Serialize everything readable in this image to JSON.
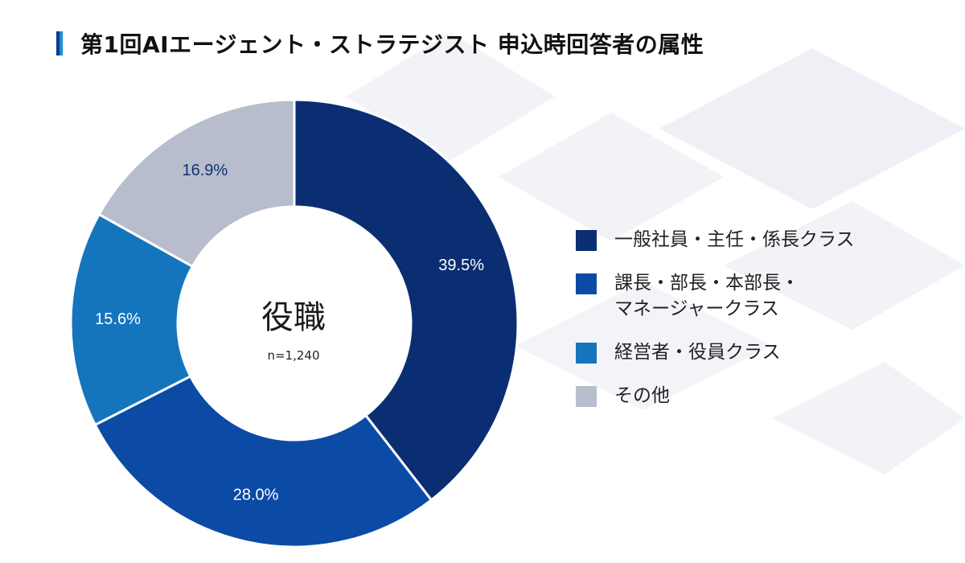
{
  "title": "第1回AIエージェント・ストラテジスト 申込時回答者の属性",
  "colors": {
    "title_bar_dark": "#0b3d8c",
    "title_bar_light": "#1d8fd8",
    "background_deco": "#eef0f5"
  },
  "chart_data": {
    "type": "pie",
    "donut": true,
    "title": "第1回AIエージェント・ストラテジスト 申込時回答者の属性",
    "center_label": "役職",
    "center_sublabel": "n=1,240",
    "slices": [
      {
        "label": "一般社員・主任・係長クラス",
        "value": 39.5,
        "display": "39.5%",
        "color": "#0b2e72",
        "label_color": "#ffffff"
      },
      {
        "label": "課長・部長・本部長・\nマネージャークラス",
        "value": 28.0,
        "display": "28.0%",
        "color": "#0b4ba6",
        "label_color": "#ffffff"
      },
      {
        "label": "経営者・役員クラス",
        "value": 15.6,
        "display": "15.6%",
        "color": "#1475bd",
        "label_color": "#ffffff"
      },
      {
        "label": "その他",
        "value": 16.9,
        "display": "16.9%",
        "color": "#b7bdcc",
        "label_color": "#14306e"
      }
    ],
    "legend_position": "right"
  }
}
